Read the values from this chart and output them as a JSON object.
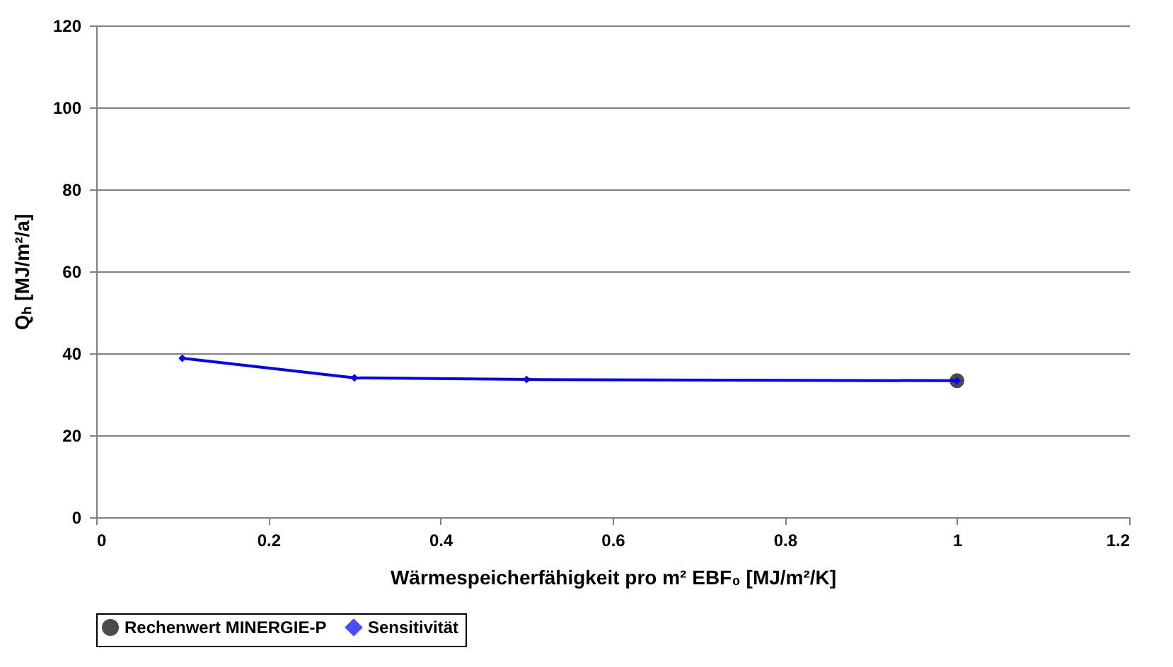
{
  "chart_data": {
    "type": "line",
    "xlabel": "Wärmespeicherfähigkeit pro m² EBF₀ [MJ/m²/K]",
    "ylabel": "Qₕ [MJ/m²/a]",
    "xlim": [
      0,
      1.2
    ],
    "xticks": [
      0,
      0.2,
      0.4,
      0.6,
      0.8,
      1,
      1.2
    ],
    "ylim": [
      0,
      120
    ],
    "yticks": [
      0,
      20,
      40,
      60,
      80,
      100,
      120
    ],
    "grid": "y",
    "legend": "bottom",
    "series": [
      {
        "name": "Rechenwert MINERGIE-P",
        "type": "scatter",
        "marker": "circle",
        "color": "#000000",
        "x": [
          1
        ],
        "values": [
          33.3
        ]
      },
      {
        "name": "Sensitivität",
        "marker": "diamond",
        "color": "#0000ff",
        "x": [
          0.1,
          0.3,
          0.5,
          1
        ],
        "values": [
          38.8,
          34,
          33.6,
          33.3
        ]
      }
    ]
  }
}
